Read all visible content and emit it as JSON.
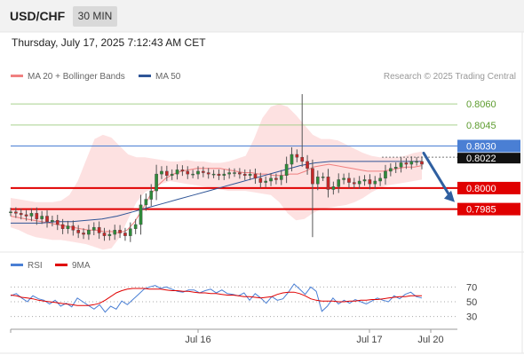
{
  "header": {
    "symbol": "USD/CHF",
    "timeframe": "30 MIN"
  },
  "datetime": "Thursday, July 17, 2025 7:12:43 AM CET",
  "legend": {
    "items": [
      {
        "label": "MA 20 + Bollinger Bands",
        "color": "#f08080"
      },
      {
        "label": "MA 50",
        "color": "#2f5597"
      }
    ],
    "credit": "Research © 2025 Trading Central"
  },
  "rsi_legend": {
    "items": [
      {
        "label": "RSI",
        "color": "#4a7fd4"
      },
      {
        "label": "9MA",
        "color": "#e00000"
      }
    ]
  },
  "chart_data": [
    {
      "type": "candlestick",
      "title": "USD/CHF 30 MIN",
      "x_ticks": [
        "Jul 16",
        "Jul 17",
        "Jul 20"
      ],
      "ylim": [
        0.7955,
        0.8074
      ],
      "price_levels": [
        {
          "value": 0.806,
          "label": "0.8060",
          "color": "#a9d18e",
          "style": "thin"
        },
        {
          "value": 0.8045,
          "label": "0.8045",
          "color": "#a9d18e",
          "style": "thin"
        },
        {
          "value": 0.803,
          "label": "0.8030",
          "color": "#4a7fd4",
          "style": "thin"
        },
        {
          "value": 0.8,
          "label": "0.8000",
          "color": "#e00000",
          "style": "thick"
        },
        {
          "value": 0.7985,
          "label": "0.7985",
          "color": "#e00000",
          "style": "thick"
        }
      ],
      "current_price": {
        "value": 0.8022,
        "label": "0.8022"
      },
      "forecast_arrow": {
        "from": 0.8025,
        "to": 0.799,
        "color": "#2f5fa0"
      },
      "series": {
        "close": [
          0.7983,
          0.7982,
          0.7981,
          0.798,
          0.7982,
          0.7978,
          0.798,
          0.7976,
          0.7977,
          0.7974,
          0.7971,
          0.7973,
          0.797,
          0.7968,
          0.7967,
          0.797,
          0.7972,
          0.7968,
          0.7966,
          0.7967,
          0.797,
          0.7968,
          0.7966,
          0.7971,
          0.7974,
          0.7988,
          0.7992,
          0.7998,
          0.801,
          0.8012,
          0.8009,
          0.801,
          0.8013,
          0.8012,
          0.801,
          0.801,
          0.8012,
          0.8011,
          0.801,
          0.801,
          0.8009,
          0.801,
          0.8011,
          0.8011,
          0.801,
          0.8009,
          0.801,
          0.8007,
          0.8004,
          0.8005,
          0.8007,
          0.8006,
          0.8009,
          0.8017,
          0.8024,
          0.8022,
          0.8019,
          0.8014,
          0.8003,
          0.8008,
          0.8008,
          0.7999,
          0.8001,
          0.8006,
          0.8007,
          0.8004,
          0.8003,
          0.8005,
          0.8006,
          0.8003,
          0.8005,
          0.8007,
          0.8012,
          0.8014,
          0.8015,
          0.8018,
          0.8017,
          0.8019,
          0.8019,
          0.8017
        ],
        "ma20": [
          0.798,
          0.7979,
          0.7978,
          0.7977,
          0.7976,
          0.7975,
          0.7974,
          0.7973,
          0.7972,
          0.7971,
          0.797,
          0.797,
          0.7969,
          0.7969,
          0.7968,
          0.797,
          0.7976,
          0.7985,
          0.7995,
          0.8002,
          0.8007,
          0.801,
          0.8012,
          0.8013,
          0.8014,
          0.8014,
          0.8014,
          0.8014,
          0.8013,
          0.8012,
          0.8011,
          0.8011,
          0.801,
          0.801,
          0.8009,
          0.8009,
          0.801,
          0.801,
          0.8012,
          0.8015,
          0.8016,
          0.8017,
          0.8016,
          0.8015,
          0.8014,
          0.8013,
          0.8012,
          0.8012,
          0.8012,
          0.8013,
          0.8014,
          0.8015,
          0.8015,
          0.8016
        ],
        "ma50": [
          0.7975,
          0.7975,
          0.7975,
          0.7976,
          0.7976,
          0.7977,
          0.7978,
          0.798,
          0.7983,
          0.7986,
          0.7989,
          0.7992,
          0.7995,
          0.7998,
          0.8001,
          0.8004,
          0.8007,
          0.801,
          0.8013,
          0.8016,
          0.8018,
          0.8019,
          0.8019,
          0.8019,
          0.8019,
          0.8019,
          0.8019,
          0.8019
        ],
        "bb_upper": [
          0.7993,
          0.7992,
          0.7991,
          0.799,
          0.799,
          0.799,
          0.7991,
          0.7995,
          0.8005,
          0.802,
          0.8035,
          0.8038,
          0.8036,
          0.803,
          0.8024,
          0.8022,
          0.8022,
          0.8021,
          0.802,
          0.8019,
          0.8019,
          0.802,
          0.8019,
          0.8019,
          0.8018,
          0.8018,
          0.8019,
          0.8021,
          0.8023,
          0.8035,
          0.805,
          0.8058,
          0.806,
          0.8058,
          0.8052,
          0.8045,
          0.8038,
          0.8035,
          0.8035,
          0.8034,
          0.8031,
          0.8028,
          0.8025,
          0.8023,
          0.8022,
          0.8022,
          0.8022,
          0.8023,
          0.8025,
          0.8026
        ],
        "bb_lower": [
          0.7972,
          0.797,
          0.7967,
          0.7965,
          0.7964,
          0.7963,
          0.7963,
          0.7962,
          0.7961,
          0.796,
          0.7958,
          0.7956,
          0.7957,
          0.7965,
          0.7978,
          0.799,
          0.7997,
          0.8,
          0.8003,
          0.8005,
          0.8004,
          0.8003,
          0.8002,
          0.8001,
          0.8,
          0.7999,
          0.7998,
          0.7998,
          0.7998,
          0.7997,
          0.7996,
          0.7995,
          0.799,
          0.7982,
          0.7977,
          0.7978,
          0.7982,
          0.7985,
          0.7986,
          0.7987,
          0.7988,
          0.799,
          0.7993,
          0.7997,
          0.8,
          0.8002,
          0.8003,
          0.8004,
          0.8005,
          0.8006
        ]
      }
    },
    {
      "type": "line",
      "title": "RSI",
      "ylim": [
        20,
        80
      ],
      "y_ticks": [
        70,
        50,
        30
      ],
      "series": [
        {
          "name": "RSI",
          "color": "#4a7fd4",
          "values": [
            58,
            61,
            55,
            50,
            58,
            54,
            52,
            47,
            52,
            44,
            48,
            43,
            55,
            50,
            45,
            40,
            46,
            36,
            44,
            40,
            51,
            46,
            53,
            60,
            67,
            70,
            72,
            68,
            70,
            67,
            64,
            63,
            66,
            66,
            62,
            65,
            67,
            62,
            66,
            61,
            60,
            58,
            62,
            52,
            61,
            55,
            48,
            57,
            52,
            54,
            63,
            74,
            67,
            60,
            70,
            64,
            37,
            44,
            55,
            47,
            52,
            48,
            53,
            50,
            47,
            51,
            55,
            52,
            50,
            58,
            54,
            60,
            63,
            57,
            55
          ]
        },
        {
          "name": "9MA",
          "color": "#e00000",
          "values": [
            59,
            58,
            56,
            55,
            54,
            52,
            51,
            50,
            49,
            48,
            47,
            46,
            45,
            45,
            45,
            46,
            48,
            52,
            57,
            62,
            65,
            67,
            68,
            68,
            68,
            67,
            67,
            67,
            66,
            65,
            65,
            64,
            64,
            63,
            62,
            62,
            61,
            61,
            60,
            59,
            59,
            58,
            57,
            57,
            56,
            55,
            56,
            57,
            60,
            62,
            63,
            63,
            61,
            58,
            54,
            52,
            51,
            51,
            51,
            50,
            50,
            51,
            51,
            52,
            52,
            53,
            53,
            54,
            55,
            56,
            57,
            57,
            58,
            58,
            58
          ]
        }
      ]
    }
  ]
}
